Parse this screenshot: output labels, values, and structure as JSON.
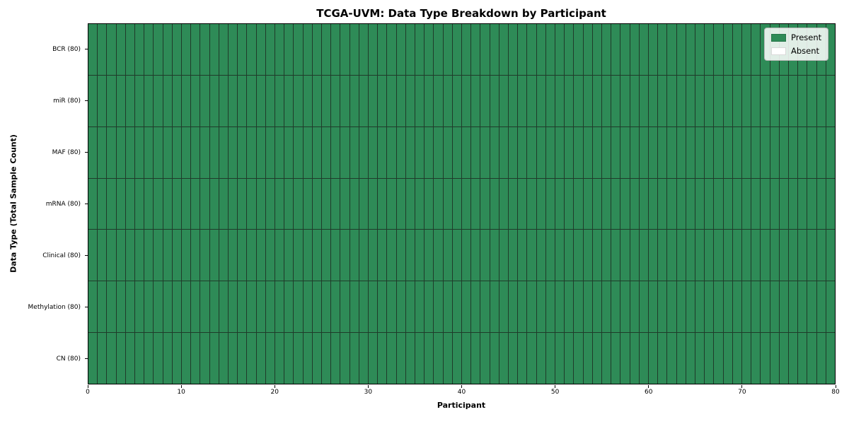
{
  "chart_data": {
    "type": "heatmap",
    "title": "TCGA-UVM: Data Type Breakdown by Participant",
    "xlabel": "Participant",
    "ylabel": "Data Type (Total Sample Count)",
    "xlim": [
      0,
      80
    ],
    "x_ticks": [
      "0",
      "10",
      "20",
      "30",
      "40",
      "50",
      "60",
      "70",
      "80"
    ],
    "x_tick_values": [
      0,
      10,
      20,
      30,
      40,
      50,
      60,
      70,
      80
    ],
    "n_participants": 80,
    "rows": [
      {
        "label": "BCR (80)",
        "present": 80,
        "absent": 0
      },
      {
        "label": "miR (80)",
        "present": 80,
        "absent": 0
      },
      {
        "label": "MAF (80)",
        "present": 80,
        "absent": 0
      },
      {
        "label": "mRNA (80)",
        "present": 80,
        "absent": 0
      },
      {
        "label": "Clinical (80)",
        "present": 80,
        "absent": 0
      },
      {
        "label": "Methylation (80)",
        "present": 80,
        "absent": 0
      },
      {
        "label": "CN (80)",
        "present": 80,
        "absent": 0
      }
    ],
    "legend": {
      "position": "upper right",
      "entries": [
        {
          "label": "Present",
          "color": "#2e8b57"
        },
        {
          "label": "Absent",
          "color": "#ffffff"
        }
      ]
    },
    "colors": {
      "present": "#2e8b57",
      "absent": "#ffffff",
      "cell_edge": "#1f3b2a",
      "axis": "#000000"
    },
    "grid": false
  }
}
